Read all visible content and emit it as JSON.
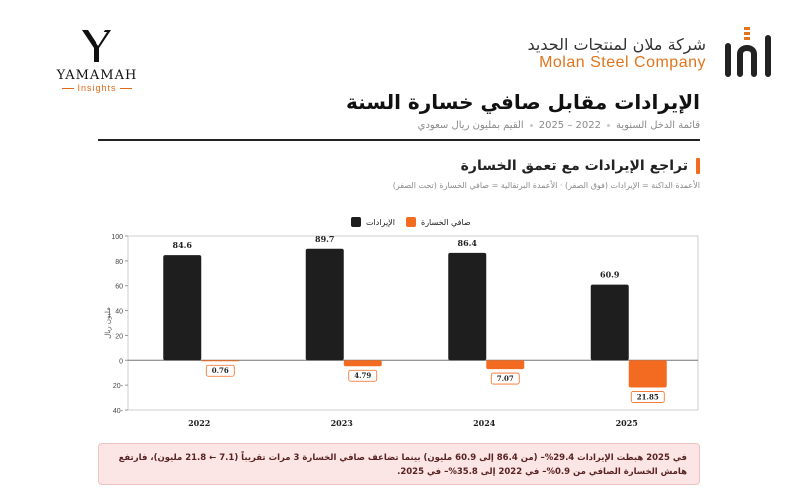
{
  "yamamah": {
    "name": "YAMAMAH",
    "sub": "Insights"
  },
  "company": {
    "name_ar": "شركة ملان لمنتجات الحديد",
    "name_en": "Molan Steel Company"
  },
  "title": "الإيرادات مقابل صافي خسارة السنة",
  "subtitle": {
    "part1": "قائمة الدخل السنوية",
    "part2": "2022 – 2025",
    "part3": "القيم بمليون ريال سعودي"
  },
  "section": {
    "title": "تراجع الإيرادات مع تعمق الخسارة",
    "note": "الأعمدة الداكنة = الإيرادات (فوق الصفر) · الأعمدة البرتقالية = صافي الخسارة (تحت الصفر)"
  },
  "colors": {
    "revenue": "#1e1e1e",
    "loss": "#f26b21",
    "accent": "#f26b21"
  },
  "chart_data": {
    "type": "bar",
    "categories": [
      "2022",
      "2023",
      "2024",
      "2025"
    ],
    "series": [
      {
        "name": "الإيرادات",
        "values": [
          84.6,
          89.7,
          86.4,
          60.9
        ],
        "labels": [
          "84.6",
          "89.7",
          "86.4",
          "60.9"
        ]
      },
      {
        "name": "صافي الخسارة",
        "values": [
          -0.76,
          -4.79,
          -7.07,
          -21.85
        ],
        "labels": [
          "0.76",
          "4.79",
          "7.07",
          "21.85"
        ]
      }
    ],
    "ylabel": "مليون ريال",
    "ylim": [
      -40,
      100
    ],
    "yticks": [
      100,
      80,
      60,
      40,
      20,
      0,
      -20,
      -40
    ],
    "ytick_labels": [
      "100",
      "80",
      "60",
      "40",
      "20",
      "0",
      "20-",
      "40-"
    ],
    "grid": false,
    "legend_position": "top-center"
  },
  "insight": "في 2025 هبطت الإيرادات 29.4%– (من 86.4 إلى 60.9 مليون) بينما تضاعف صافي الخسارة 3 مرات تقريباً (7.1 ← 21.8 مليون)، فارتفع هامش الخسارة الصافي من 0.9%– في 2022 إلى 35.8%– في 2025."
}
